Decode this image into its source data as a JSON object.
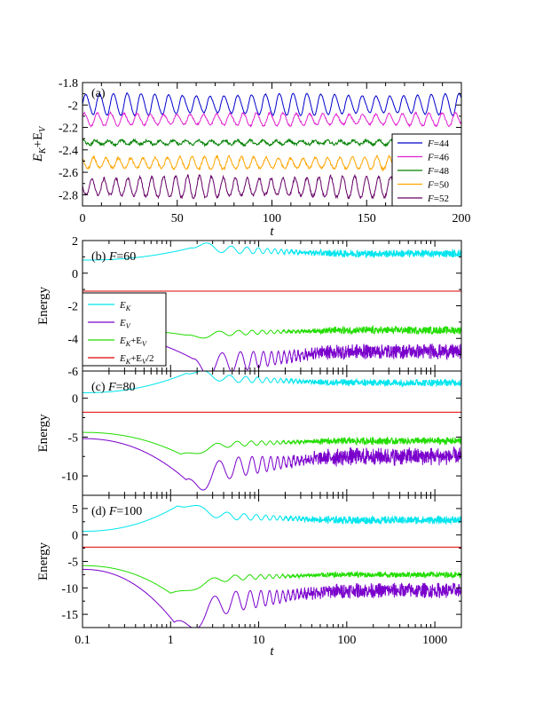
{
  "chart_data": [
    {
      "id": "a",
      "type": "line",
      "panel_label": "(a)",
      "xlabel": "t",
      "ylabel": "E_K+E_V",
      "xscale": "linear",
      "xlim": [
        0,
        200
      ],
      "ylim": [
        -2.9,
        -1.8
      ],
      "xticks": [
        0,
        50,
        100,
        150,
        200
      ],
      "xtick_labels": [
        "0",
        "50",
        "100",
        "150",
        "200"
      ],
      "yticks": [
        -1.8,
        -2,
        -2.2,
        -2.4,
        -2.6,
        -2.8
      ],
      "ytick_labels": [
        "-1.8",
        "-2",
        "-2.2",
        "-2.4",
        "-2.6",
        "-2.8"
      ],
      "legend_position": "bottom-right",
      "series": [
        {
          "name": "F=44",
          "prefix": "F",
          "suffix": "=44",
          "color": "#0000cc",
          "mean": -1.995,
          "amplitude": 0.085,
          "period": 7.3,
          "noise": 0.004
        },
        {
          "name": "F=46",
          "prefix": "F",
          "suffix": "=46",
          "color": "#e020d0",
          "mean": -2.13,
          "amplitude": 0.05,
          "period": 7.0,
          "noise": 0.008
        },
        {
          "name": "F=48",
          "prefix": "F",
          "suffix": "=48",
          "color": "#008000",
          "mean": -2.335,
          "amplitude": 0.018,
          "period": 6.8,
          "noise": 0.012
        },
        {
          "name": "F=50",
          "prefix": "F",
          "suffix": "=50",
          "color": "#ffa500",
          "mean": -2.52,
          "amplitude": 0.05,
          "period": 6.5,
          "noise": 0.01
        },
        {
          "name": "F=52",
          "prefix": "F",
          "suffix": "=52",
          "color": "#660066",
          "mean": -2.735,
          "amplitude": 0.085,
          "period": 6.3,
          "noise": 0.012
        }
      ]
    },
    {
      "id": "b",
      "type": "line",
      "panel_label": "(b) F=60",
      "panel_label_parts": [
        "(b) ",
        "F",
        "=60"
      ],
      "xlabel": "",
      "ylabel": "Energy",
      "xscale": "log",
      "xlim": [
        0.1,
        2000
      ],
      "ylim": [
        -6,
        2
      ],
      "yticks": [
        2,
        0,
        -2,
        -4,
        -6
      ],
      "ytick_labels": [
        "2",
        "0",
        "-2",
        "-4",
        "-6"
      ],
      "legend_position": "middle-left",
      "series": [
        {
          "name": "E_K",
          "color": "#00e5ee",
          "start": 0.8,
          "peak_value": 1.55,
          "peak_time": 1.7,
          "final": 1.2,
          "well_amp": 0.5,
          "fast_amp": 0.25
        },
        {
          "name": "E_V",
          "color": "#7a00cc",
          "start": -3.6,
          "peak_value": -5.25,
          "peak_time": 1.8,
          "final": -4.8,
          "well_amp": 1.4,
          "fast_amp": 0.5
        },
        {
          "name": "E_K+E_V",
          "color": "#22dd00",
          "start": -3.35,
          "peak_value": -3.8,
          "peak_time": 1.5,
          "final": -3.5,
          "well_amp": 0.35,
          "fast_amp": 0.25
        },
        {
          "name": "E_K+E_V/2",
          "color": "#dd0000",
          "constant": -1.1
        }
      ],
      "legend": [
        {
          "name": "E_K",
          "base": "E",
          "sub": "K",
          "rest": ""
        },
        {
          "name": "E_V",
          "base": "E",
          "sub": "V",
          "rest": ""
        },
        {
          "name": "E_K+E_V",
          "base": "E",
          "sub": "K",
          "rest": "+E",
          "sub2": "V",
          "rest2": ""
        },
        {
          "name": "E_K+E_V/2",
          "base": "E",
          "sub": "K",
          "rest": "+E",
          "sub2": "V",
          "rest2": "/2"
        }
      ]
    },
    {
      "id": "c",
      "type": "line",
      "panel_label": "(c) F=80",
      "panel_label_parts": [
        "(c) ",
        "F",
        "=80"
      ],
      "xlabel": "",
      "ylabel": "Energy",
      "xscale": "log",
      "xlim": [
        0.1,
        2000
      ],
      "ylim": [
        -12.5,
        3.5
      ],
      "yticks": [
        0,
        -5,
        -10
      ],
      "ytick_labels": [
        "0",
        "-5",
        "-10"
      ],
      "series": [
        {
          "name": "E_K",
          "color": "#00e5ee",
          "start": 0.7,
          "peak_value": 3.2,
          "peak_time": 1.5,
          "final": 2.0,
          "well_amp": 1.0,
          "fast_amp": 0.5
        },
        {
          "name": "E_V",
          "color": "#7a00cc",
          "start": -5.2,
          "peak_value": -10.5,
          "peak_time": 1.5,
          "final": -7.5,
          "well_amp": 3.0,
          "fast_amp": 1.2
        },
        {
          "name": "E_K+E_V",
          "color": "#22dd00",
          "start": -4.4,
          "peak_value": -7.2,
          "peak_time": 1.3,
          "final": -5.5,
          "well_amp": 0.8,
          "fast_amp": 0.5
        },
        {
          "name": "E_K+E_V/2",
          "color": "#dd0000",
          "constant": -1.8
        }
      ]
    },
    {
      "id": "d",
      "type": "line",
      "panel_label": "(d) F=100",
      "panel_label_parts": [
        "(d) ",
        "F",
        "=100"
      ],
      "xlabel": "t",
      "ylabel": "Energy",
      "xscale": "log",
      "xlim": [
        0.1,
        2000
      ],
      "ylim": [
        -17.5,
        7.5
      ],
      "xticks": [
        0.1,
        1,
        10,
        100,
        1000
      ],
      "xtick_labels": [
        "0.1",
        "1",
        "10",
        "100",
        "1000"
      ],
      "yticks": [
        5,
        0,
        -5,
        -10,
        -15
      ],
      "ytick_labels": [
        "5",
        "0",
        "-5",
        "-10",
        "-15"
      ],
      "series": [
        {
          "name": "E_K",
          "color": "#00e5ee",
          "start": 0.7,
          "peak_value": 5.5,
          "peak_time": 1.2,
          "final": 2.8,
          "well_amp": 1.5,
          "fast_amp": 0.8
        },
        {
          "name": "E_V",
          "color": "#7a00cc",
          "start": -6.5,
          "peak_value": -16.5,
          "peak_time": 1.1,
          "final": -10.5,
          "well_amp": 4.5,
          "fast_amp": 1.5
        },
        {
          "name": "E_K+E_V",
          "color": "#22dd00",
          "start": -5.8,
          "peak_value": -11.0,
          "peak_time": 1.0,
          "final": -7.5,
          "well_amp": 1.2,
          "fast_amp": 0.6
        },
        {
          "name": "E_K+E_V/2",
          "color": "#dd0000",
          "constant": -2.3
        }
      ]
    }
  ]
}
